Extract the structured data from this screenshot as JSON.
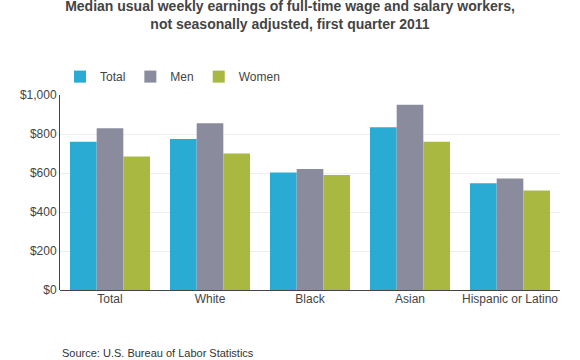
{
  "chart_data": {
    "type": "bar",
    "title": "Median usual weekly earnings of full-time wage and salary workers,\nnot seasonally adjusted, first quarter 2011",
    "categories": [
      "Total",
      "White",
      "Black",
      "Asian",
      "Hispanic or Latino"
    ],
    "series": [
      {
        "name": "Total",
        "color": "#29ABD4",
        "values": [
          760,
          775,
          603,
          835,
          548
        ]
      },
      {
        "name": "Men",
        "color": "#8B8B9E",
        "values": [
          830,
          855,
          620,
          950,
          572
        ]
      },
      {
        "name": "Women",
        "color": "#A8B840",
        "values": [
          685,
          700,
          590,
          760,
          510
        ]
      }
    ],
    "ylim": [
      0,
      1000
    ],
    "yticks": [
      {
        "value": 0,
        "label": "$0"
      },
      {
        "value": 200,
        "label": "$200"
      },
      {
        "value": 400,
        "label": "$400"
      },
      {
        "value": 600,
        "label": "$600"
      },
      {
        "value": 800,
        "label": "$800"
      },
      {
        "value": 1000,
        "label": "$1,000"
      }
    ],
    "grid": true,
    "legend": "upper left",
    "annotations": [
      "Source: U.S. Bureau of Labor Statistics"
    ]
  }
}
